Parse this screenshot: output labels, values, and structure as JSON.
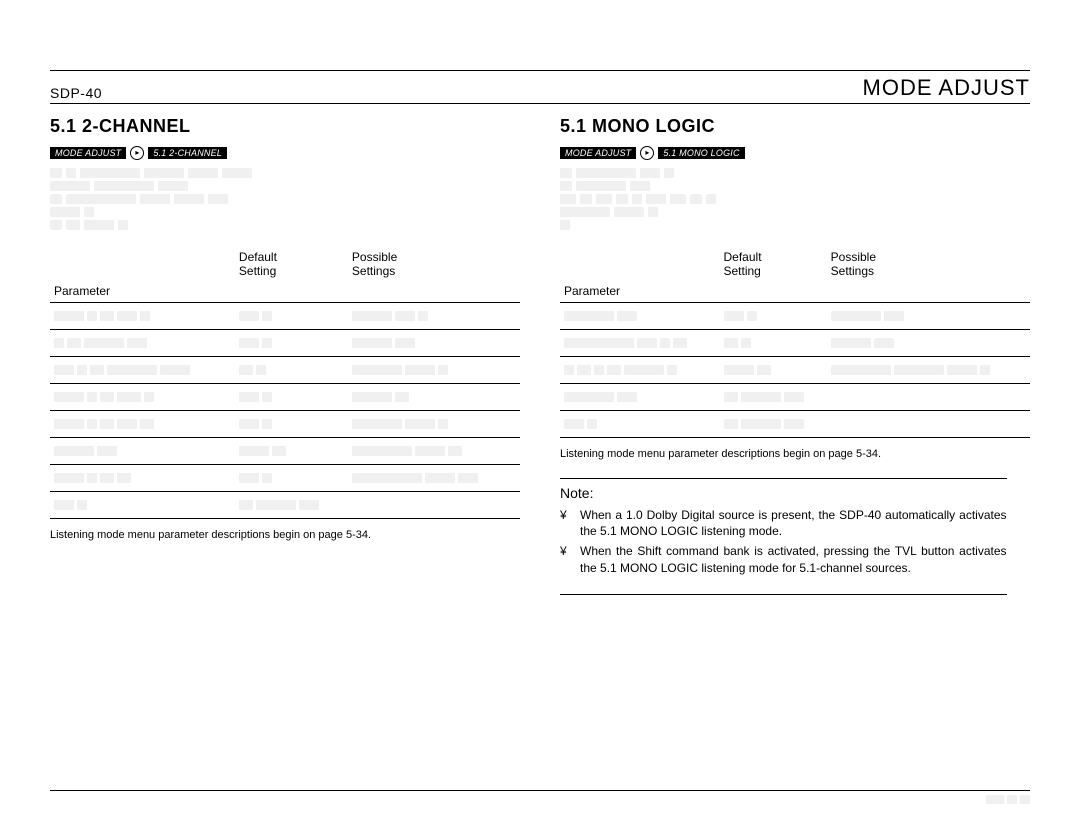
{
  "header": {
    "model": "SDP-40",
    "page_title": "MODE ADJUST"
  },
  "left": {
    "title": "5.1 2-CHANNEL",
    "breadcrumb": {
      "a": "MODE ADJUST",
      "b": "5.1 2-CHANNEL"
    },
    "desc_lines": [
      [
        12,
        10,
        60,
        40,
        30,
        30
      ],
      [
        40,
        60,
        30
      ],
      [
        12,
        70,
        30,
        30,
        20
      ],
      [
        30,
        10
      ],
      [
        12,
        14,
        30,
        10
      ]
    ],
    "table": {
      "headers": {
        "param": "Parameter",
        "def": "Default\nSetting",
        "poss": "Possible\nSettings"
      },
      "rows": [
        {
          "p": [
            30,
            10,
            14,
            20,
            10
          ],
          "d": [
            20,
            10
          ],
          "s": [
            40,
            20,
            10
          ]
        },
        {
          "p": [
            10,
            14,
            40,
            20
          ],
          "d": [
            20,
            10
          ],
          "s": [
            40,
            20
          ]
        },
        {
          "p": [
            20,
            10,
            14,
            50,
            30
          ],
          "d": [
            14,
            10
          ],
          "s": [
            50,
            30,
            10
          ]
        },
        {
          "p": [
            30,
            10,
            14,
            24,
            10
          ],
          "d": [
            20,
            10
          ],
          "s": [
            40,
            14
          ]
        },
        {
          "p": [
            30,
            10,
            14,
            20,
            14
          ],
          "d": [
            20,
            10
          ],
          "s": [
            50,
            30,
            10
          ]
        },
        {
          "p": [
            40,
            20
          ],
          "d": [
            30,
            14
          ],
          "s": [
            60,
            30,
            14
          ]
        },
        {
          "p": [
            30,
            10,
            14,
            14
          ],
          "d": [
            20,
            10
          ],
          "s": [
            70,
            30,
            20
          ]
        },
        {
          "p": [
            20,
            10
          ],
          "d": [
            14,
            40,
            20
          ],
          "s": []
        }
      ]
    },
    "footnote": "Listening mode menu parameter descriptions begin on page 5-34."
  },
  "right": {
    "title": "5.1 MONO LOGIC",
    "breadcrumb": {
      "a": "MODE ADJUST",
      "b": "5.1 MONO LOGIC"
    },
    "desc_lines": [
      [
        12,
        60,
        20,
        10
      ],
      [
        12,
        50,
        20
      ],
      [
        16,
        12,
        16,
        12,
        10,
        20,
        16,
        12,
        10
      ],
      [
        50,
        30,
        10
      ],
      [
        10
      ]
    ],
    "table": {
      "headers": {
        "param": "Parameter",
        "def": "Default\nSetting",
        "poss": "Possible\nSettings"
      },
      "rows": [
        {
          "p": [
            50,
            20
          ],
          "d": [
            20,
            10
          ],
          "s": [
            50,
            20
          ]
        },
        {
          "p": [
            70,
            20,
            10,
            14
          ],
          "d": [
            14,
            10
          ],
          "s": [
            40,
            20
          ]
        },
        {
          "p": [
            10,
            14,
            10,
            14,
            40,
            10
          ],
          "d": [
            30,
            14
          ],
          "s": [
            60,
            50,
            30,
            10
          ]
        },
        {
          "p": [
            50,
            20
          ],
          "d": [
            14,
            40,
            20
          ],
          "s": []
        },
        {
          "p": [
            20,
            10
          ],
          "d": [
            14,
            40,
            20
          ],
          "s": []
        }
      ]
    },
    "footnote": "Listening mode menu parameter descriptions begin on page 5-34.",
    "note": {
      "head": "Note:",
      "bullet": "¥",
      "items": [
        "When a 1.0 Dolby Digital source is present, the SDP-40 automatically activates the 5.1 MONO LOGIC listening mode.",
        "When the Shift command bank is activated, pressing the TVL button activates the 5.1 MONO LOGIC listening mode for 5.1-channel sources."
      ]
    }
  },
  "footer": {
    "page_num_boxes": [
      18,
      10,
      10
    ]
  }
}
